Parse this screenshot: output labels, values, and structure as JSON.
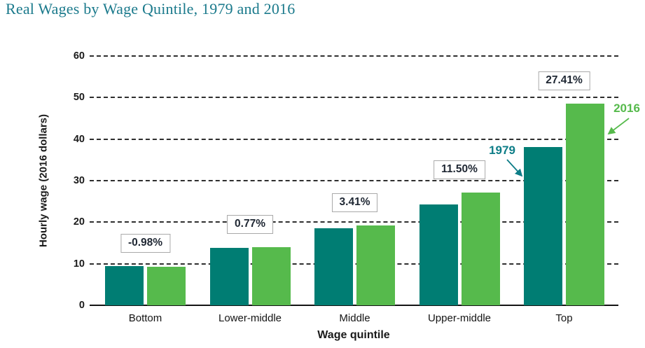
{
  "title": "Real Wages by Wage Quintile, 1979 and 2016",
  "colors": {
    "title_teal": "#1b7a8c",
    "bar_1979": "#007d73",
    "bar_2016": "#56ba4c",
    "annotation_1979": "#0d7d87",
    "annotation_2016": "#56ba4c",
    "gridline": "#2e2e2e",
    "change_label_text": "#1f2733"
  },
  "chart_data": {
    "type": "bar",
    "title": "Real Wages by Wage Quintile, 1979 and 2016",
    "categories": [
      "Bottom",
      "Lower-middle",
      "Middle",
      "Upper-middle",
      "Top"
    ],
    "series": [
      {
        "name": "1979",
        "color": "#007d73",
        "values": [
          9.4,
          13.9,
          18.6,
          24.3,
          38.1
        ]
      },
      {
        "name": "2016",
        "color": "#56ba4c",
        "values": [
          9.3,
          14.0,
          19.2,
          27.1,
          48.5
        ]
      }
    ],
    "change_labels": [
      "-0.98%",
      "0.77%",
      "3.41%",
      "11.50%",
      "27.41%"
    ],
    "xlabel": "Wage quintile",
    "ylabel": "Hourly wage (2016 dollars)",
    "ylim": [
      0,
      60
    ],
    "yticks": [
      0,
      10,
      20,
      30,
      40,
      50,
      60
    ],
    "grid": "horizontal dashed",
    "legend": "inline annotations with arrows",
    "annotations": [
      {
        "text": "1979",
        "color": "#0d7d87"
      },
      {
        "text": "2016",
        "color": "#56ba4c"
      }
    ]
  }
}
